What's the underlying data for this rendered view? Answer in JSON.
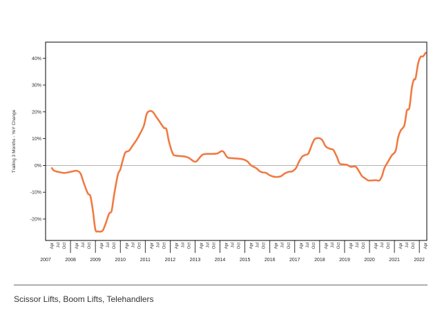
{
  "caption": "Scissor Lifts, Boom Lifts, Telehandlers",
  "colors": {
    "line": "#F07A43",
    "zero_line": "#9a9a9a",
    "frame": "#000000"
  },
  "chart_data": {
    "type": "line",
    "title": "",
    "xlabel": "",
    "ylabel": "Trailing 3 Months - YoY Change",
    "ylim": [
      -28,
      46
    ],
    "yticks": [
      -20,
      -10,
      0,
      10,
      20,
      30,
      40
    ],
    "ytick_labels": [
      "-20%",
      "-10%",
      "0%",
      "10%",
      "20%",
      "30%",
      "40%"
    ],
    "x_year_labels": [
      "2007",
      "2008",
      "2009",
      "2010",
      "2011",
      "2012",
      "2013",
      "2014",
      "2015",
      "2016",
      "2017",
      "2018",
      "2019",
      "2020",
      "2021",
      "2022"
    ],
    "x_month_labels": [
      "Apr",
      "Jul",
      "Oct"
    ],
    "grid": false,
    "zero_line": true,
    "series": [
      {
        "values": [
          [
            2007.25,
            -1
          ],
          [
            2007.35,
            -2
          ],
          [
            2007.55,
            -2.5
          ],
          [
            2007.75,
            -2.8
          ],
          [
            2007.95,
            -2.5
          ],
          [
            2008.1,
            -2.2
          ],
          [
            2008.25,
            -2
          ],
          [
            2008.4,
            -3
          ],
          [
            2008.55,
            -7
          ],
          [
            2008.7,
            -10.5
          ],
          [
            2008.8,
            -11.5
          ],
          [
            2008.9,
            -17
          ],
          [
            2009.0,
            -24
          ],
          [
            2009.1,
            -24.6
          ],
          [
            2009.2,
            -24.7
          ],
          [
            2009.3,
            -24.2
          ],
          [
            2009.4,
            -22
          ],
          [
            2009.55,
            -18
          ],
          [
            2009.65,
            -17
          ],
          [
            2009.75,
            -11
          ],
          [
            2009.9,
            -3.5
          ],
          [
            2010.0,
            -1.5
          ],
          [
            2010.1,
            2
          ],
          [
            2010.2,
            4.8
          ],
          [
            2010.35,
            5.5
          ],
          [
            2010.5,
            7.5
          ],
          [
            2010.65,
            9.5
          ],
          [
            2010.8,
            12
          ],
          [
            2010.95,
            15
          ],
          [
            2011.05,
            19
          ],
          [
            2011.15,
            20.2
          ],
          [
            2011.3,
            20
          ],
          [
            2011.45,
            18
          ],
          [
            2011.6,
            16
          ],
          [
            2011.75,
            14
          ],
          [
            2011.85,
            13.5
          ],
          [
            2011.95,
            9
          ],
          [
            2012.1,
            4.5
          ],
          [
            2012.2,
            3.7
          ],
          [
            2012.4,
            3.5
          ],
          [
            2012.6,
            3.3
          ],
          [
            2012.75,
            2.8
          ],
          [
            2012.95,
            1.5
          ],
          [
            2013.05,
            1.5
          ],
          [
            2013.15,
            2.5
          ],
          [
            2013.3,
            4
          ],
          [
            2013.5,
            4.3
          ],
          [
            2013.7,
            4.3
          ],
          [
            2013.9,
            4.5
          ],
          [
            2014.05,
            5.3
          ],
          [
            2014.15,
            5
          ],
          [
            2014.3,
            3
          ],
          [
            2014.5,
            2.7
          ],
          [
            2014.75,
            2.5
          ],
          [
            2014.95,
            2.2
          ],
          [
            2015.1,
            1.5
          ],
          [
            2015.25,
            0
          ],
          [
            2015.45,
            -1
          ],
          [
            2015.6,
            -2.2
          ],
          [
            2015.7,
            -2.6
          ],
          [
            2015.85,
            -2.8
          ],
          [
            2016.0,
            -3.7
          ],
          [
            2016.15,
            -4.2
          ],
          [
            2016.3,
            -4.3
          ],
          [
            2016.45,
            -4
          ],
          [
            2016.6,
            -3
          ],
          [
            2016.75,
            -2.4
          ],
          [
            2016.9,
            -2.2
          ],
          [
            2017.05,
            -1
          ],
          [
            2017.15,
            1
          ],
          [
            2017.3,
            3.3
          ],
          [
            2017.45,
            4
          ],
          [
            2017.55,
            4.5
          ],
          [
            2017.7,
            8
          ],
          [
            2017.8,
            9.8
          ],
          [
            2017.95,
            10.2
          ],
          [
            2018.1,
            9.5
          ],
          [
            2018.25,
            7
          ],
          [
            2018.45,
            6.1
          ],
          [
            2018.55,
            5.8
          ],
          [
            2018.7,
            3
          ],
          [
            2018.8,
            0.7
          ],
          [
            2018.95,
            0.4
          ],
          [
            2019.1,
            0.2
          ],
          [
            2019.25,
            -0.5
          ],
          [
            2019.45,
            -0.5
          ],
          [
            2019.6,
            -2.5
          ],
          [
            2019.7,
            -4
          ],
          [
            2019.85,
            -5
          ],
          [
            2019.95,
            -5.6
          ],
          [
            2020.1,
            -5.6
          ],
          [
            2020.25,
            -5.5
          ],
          [
            2020.4,
            -5.6
          ],
          [
            2020.5,
            -4
          ],
          [
            2020.6,
            -1
          ],
          [
            2020.75,
            1.5
          ],
          [
            2020.9,
            3.8
          ],
          [
            2021.05,
            5.5
          ],
          [
            2021.15,
            10.5
          ],
          [
            2021.25,
            13
          ],
          [
            2021.4,
            15
          ],
          [
            2021.5,
            20.5
          ],
          [
            2021.6,
            21.5
          ],
          [
            2021.7,
            29
          ],
          [
            2021.78,
            32
          ],
          [
            2021.85,
            32.5
          ],
          [
            2021.95,
            38
          ],
          [
            2022.05,
            40.5
          ],
          [
            2022.15,
            40.7
          ],
          [
            2022.25,
            42
          ]
        ]
      }
    ]
  }
}
